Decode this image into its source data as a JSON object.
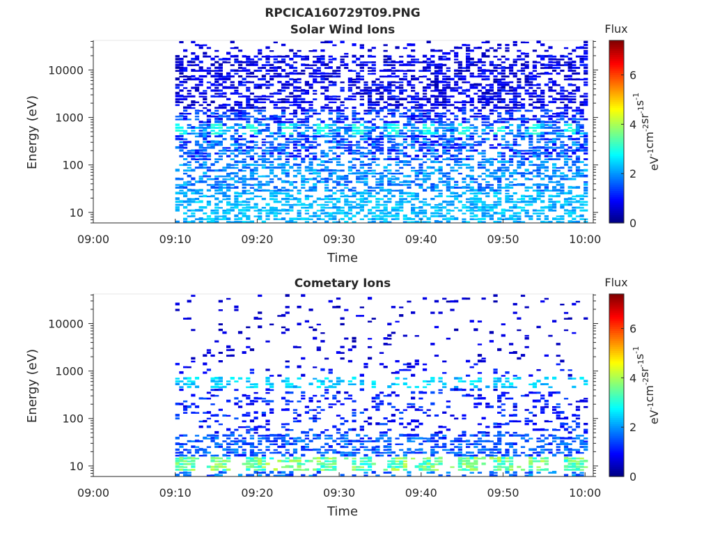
{
  "figure": {
    "filename_title": "RPCICA160729T09.PNG"
  },
  "colormap": "jet",
  "chart_data": [
    {
      "type": "heatmap",
      "title": "Solar Wind Ions",
      "xlabel": "Time",
      "ylabel": "Energy (eV)",
      "x_ticks": [
        "09:00",
        "09:10",
        "09:20",
        "09:30",
        "09:40",
        "09:50",
        "10:00"
      ],
      "xlim": [
        "09:00",
        "10:01"
      ],
      "y_scale": "log",
      "y_ticks": [
        10,
        100,
        1000,
        10000
      ],
      "y_tick_labels": [
        "10",
        "100",
        "1000",
        "10000"
      ],
      "ylim": [
        6,
        42000
      ],
      "data_start": "09:10",
      "data_end": "10:00",
      "colorbar": {
        "title": "Flux",
        "label_parts": [
          "eV",
          "-1",
          "cm",
          "-2",
          "sr",
          "-1",
          "s",
          "-1"
        ],
        "range": [
          0,
          7.4
        ],
        "ticks": [
          0,
          2,
          4,
          6
        ]
      },
      "description_bands": [
        {
          "energy_range_eV": [
            14,
            25
          ],
          "typical_value": 2.2
        },
        {
          "energy_range_eV": [
            6,
            12
          ],
          "typical_value": 2.4
        },
        {
          "energy_range_eV": [
            450,
            700
          ],
          "typical_value": 2.9
        }
      ]
    },
    {
      "type": "heatmap",
      "title": "Cometary Ions",
      "xlabel": "Time",
      "ylabel": "Energy (eV)",
      "x_ticks": [
        "09:00",
        "09:10",
        "09:20",
        "09:30",
        "09:40",
        "09:50",
        "10:00"
      ],
      "xlim": [
        "09:00",
        "10:01"
      ],
      "y_scale": "log",
      "y_ticks": [
        10,
        100,
        1000,
        10000
      ],
      "y_tick_labels": [
        "10",
        "100",
        "1000",
        "10000"
      ],
      "ylim": [
        6,
        42000
      ],
      "data_start": "09:10",
      "data_end": "10:00",
      "colorbar": {
        "title": "Flux",
        "label_parts": [
          "eV",
          "-1",
          "cm",
          "-2",
          "sr",
          "-1",
          "s",
          "-1"
        ],
        "range": [
          0,
          7.4
        ],
        "ticks": [
          0,
          2,
          4,
          6
        ]
      },
      "description_bands": [
        {
          "energy_range_eV": [
            7,
            16
          ],
          "typical_value": 3.6
        },
        {
          "energy_range_eV": [
            16,
            40
          ],
          "typical_value": 1.5
        },
        {
          "energy_range_eV": [
            450,
            700
          ],
          "typical_value": 2.4
        }
      ]
    }
  ]
}
